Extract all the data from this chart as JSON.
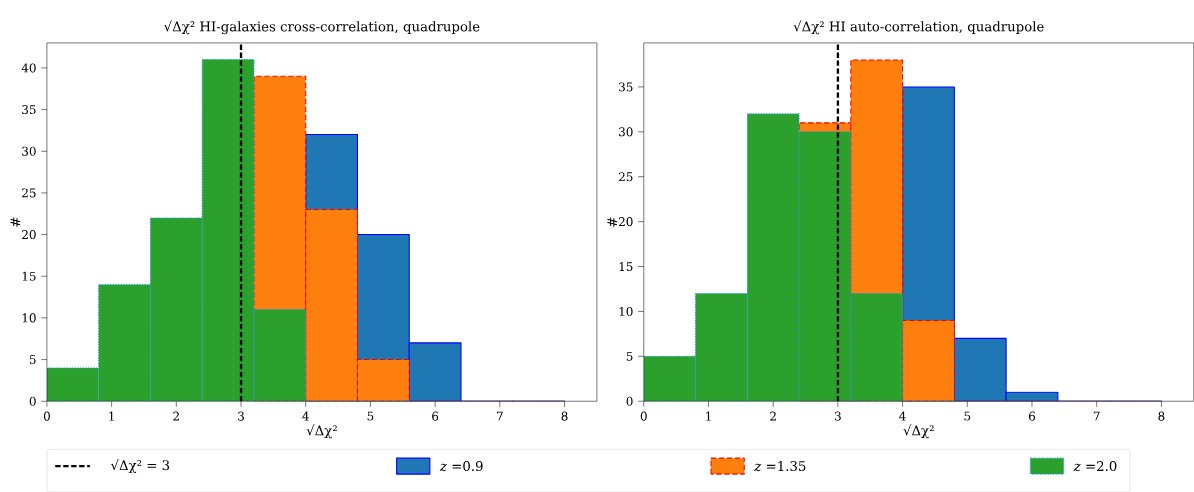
{
  "chart_data": [
    {
      "type": "histogram",
      "title": "√Δχ² HI-galaxies cross-correlation, quadrupole",
      "xlabel": "√Δχ²",
      "ylabel": "#",
      "bins": [
        0,
        0.8,
        1.6,
        2.4,
        3.2,
        4.0,
        4.8,
        5.6,
        6.4,
        7.2,
        8.0
      ],
      "series": [
        {
          "name": "*z* =0.9",
          "color": "#1f77b4",
          "line_style": "solid",
          "values": [
            null,
            null,
            null,
            null,
            null,
            32,
            20,
            7,
            0,
            0
          ]
        },
        {
          "name": "*z* =1.35",
          "color": "#ff7f0e",
          "line_style": "dashed",
          "values": [
            null,
            null,
            null,
            null,
            39,
            23,
            5,
            0,
            0,
            0
          ]
        },
        {
          "name": "*z* =2.0",
          "color": "#2ca02c",
          "line_style": "dotted",
          "values": [
            4,
            14,
            22,
            41,
            11,
            0,
            0,
            0,
            0,
            0
          ]
        }
      ],
      "xlim": [
        0,
        8.5
      ],
      "ylim": [
        0,
        43
      ],
      "xticks": [
        0,
        1,
        2,
        3,
        4,
        5,
        6,
        7,
        8
      ],
      "yticks": [
        0,
        5,
        10,
        15,
        20,
        25,
        30,
        35,
        40
      ],
      "ref_lines": [
        {
          "axis": "x",
          "value": 3,
          "label": "√Δχ² = 3",
          "color": "#000000",
          "line_style": "dashed"
        }
      ],
      "legend": "bottom",
      "grid": false
    },
    {
      "type": "histogram",
      "title": "√Δχ² HI auto-correlation, quadrupole",
      "xlabel": "√Δχ²",
      "ylabel": "#",
      "bins": [
        0,
        0.8,
        1.6,
        2.4,
        3.2,
        4.0,
        4.8,
        5.6,
        6.4,
        7.2,
        8.0
      ],
      "series": [
        {
          "color": "#1f77b4",
          "line_style": "solid",
          "values": [
            null,
            null,
            null,
            null,
            null,
            35,
            7,
            1,
            0,
            0
          ]
        },
        {
          "color": "#ff7f0e",
          "line_style": "dashed",
          "values": [
            null,
            null,
            null,
            31,
            38,
            9,
            0,
            0,
            0,
            0
          ]
        },
        {
          "color": "#2ca02c",
          "line_style": "dotted",
          "values": [
            5,
            12,
            32,
            30,
            12,
            0,
            0,
            0,
            0,
            0
          ]
        }
      ],
      "xlim": [
        0,
        8.5
      ],
      "ylim": [
        0,
        39.9
      ],
      "xticks": [
        0,
        1,
        2,
        3,
        4,
        5,
        6,
        7,
        8
      ],
      "yticks": [
        0,
        5,
        10,
        15,
        20,
        25,
        30,
        35
      ],
      "ref_lines": [
        {
          "axis": "x",
          "value": 3,
          "color": "#000000",
          "line_style": "dashed"
        }
      ],
      "grid": false
    }
  ]
}
